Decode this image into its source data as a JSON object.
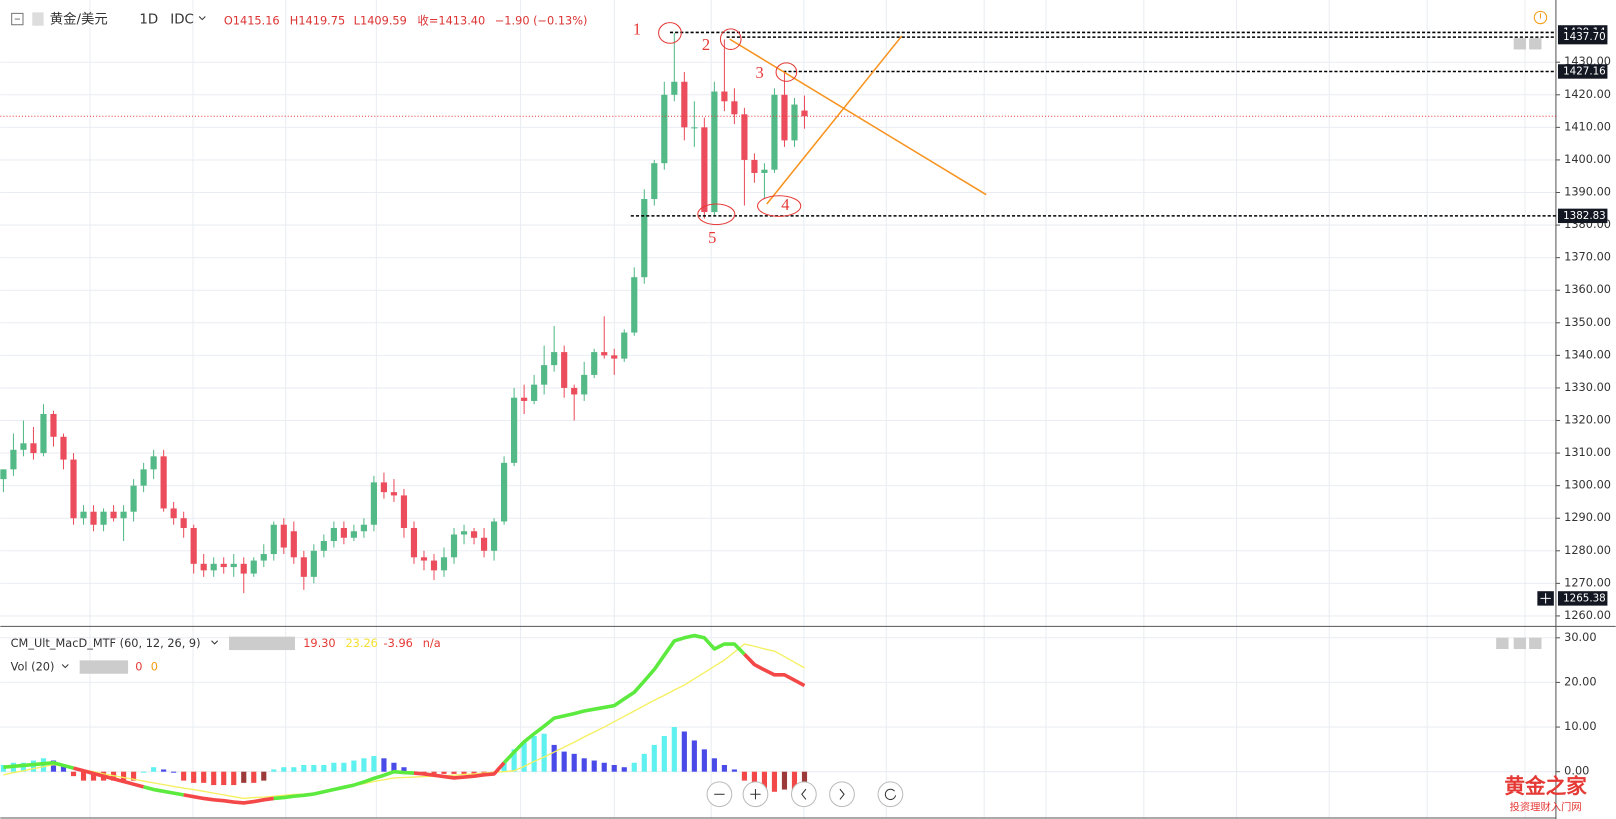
{
  "header": {
    "symbol": "黄金/美元",
    "interval": "1D",
    "source": "IDC",
    "open": "O1415.16",
    "high": "H1419.75",
    "low": "L1409.59",
    "close": "收=1413.40",
    "change": "−1.90 (−0.13%)"
  },
  "watermark": {
    "title": "黄金之家",
    "subtitle": "投资理财入门网"
  },
  "chart_data": [
    {
      "type": "candlestick",
      "up_color": "#53b987",
      "down_color": "#eb4d5c",
      "open": [
        1302,
        1305,
        1311,
        1313,
        1310,
        1322,
        1315,
        1308,
        1290,
        1292,
        1288,
        1292,
        1290,
        1292,
        1300,
        1305,
        1309,
        1293,
        1290,
        1287,
        1276,
        1274,
        1276,
        1275,
        1276,
        1273,
        1277,
        1279,
        1288,
        1286,
        1278,
        1272,
        1280,
        1283,
        1287,
        1284,
        1286,
        1288,
        1301,
        1298,
        1297,
        1287,
        1278,
        1277,
        1274,
        1278,
        1285,
        1286,
        1284,
        1280,
        1289,
        1307,
        1327,
        1326,
        1331,
        1337,
        1341,
        1330,
        1328,
        1334,
        1341,
        1340,
        1339,
        1347,
        1364,
        1388,
        1399,
        1420,
        1424,
        1410,
        1410,
        1384,
        1421,
        1418,
        1414,
        1400,
        1396,
        1397,
        1420,
        1406,
        1415.16
      ],
      "high": [
        1305,
        1316,
        1320,
        1318,
        1325,
        1323,
        1316,
        1310,
        1294,
        1294,
        1293,
        1294,
        1294,
        1302,
        1307,
        1311,
        1311,
        1295,
        1292,
        1288,
        1279,
        1278,
        1278,
        1279,
        1278,
        1278,
        1282,
        1289,
        1290,
        1289,
        1280,
        1282,
        1285,
        1289,
        1289,
        1288,
        1290,
        1303,
        1304,
        1302,
        1299,
        1289,
        1280,
        1279,
        1281,
        1287,
        1288,
        1287,
        1287,
        1290,
        1309,
        1330,
        1331,
        1334,
        1343,
        1349,
        1343,
        1331,
        1338,
        1342,
        1352,
        1342,
        1348,
        1367,
        1391,
        1400,
        1424,
        1439,
        1427,
        1418,
        1413,
        1424,
        1437,
        1422,
        1416,
        1402,
        1399,
        1422,
        1427,
        1419,
        1419.75
      ],
      "low": [
        1298,
        1303,
        1309,
        1308,
        1309,
        1312,
        1305,
        1288,
        1288,
        1286,
        1286,
        1289,
        1283,
        1289,
        1298,
        1302,
        1292,
        1288,
        1284,
        1273,
        1272,
        1272,
        1273,
        1272,
        1267,
        1272,
        1275,
        1277,
        1279,
        1276,
        1268,
        1270,
        1278,
        1281,
        1282,
        1283,
        1284,
        1286,
        1296,
        1295,
        1284,
        1276,
        1274,
        1271,
        1272,
        1276,
        1282,
        1282,
        1278,
        1277,
        1288,
        1306,
        1322,
        1325,
        1328,
        1335,
        1327,
        1320,
        1326,
        1333,
        1339,
        1334,
        1338,
        1346,
        1362,
        1386,
        1397,
        1418,
        1406,
        1404,
        1382,
        1383,
        1415,
        1411,
        1386,
        1393,
        1388,
        1396,
        1404,
        1404,
        1409.59
      ],
      "close": [
        1305,
        1311,
        1313,
        1310,
        1322,
        1315,
        1308,
        1290,
        1292,
        1288,
        1292,
        1290,
        1292,
        1300,
        1305,
        1309,
        1293,
        1290,
        1287,
        1276,
        1274,
        1276,
        1275,
        1276,
        1273,
        1277,
        1279,
        1288,
        1281,
        1278,
        1272,
        1280,
        1283,
        1287,
        1284,
        1286,
        1288,
        1301,
        1298,
        1297,
        1287,
        1278,
        1277,
        1274,
        1278,
        1285,
        1286,
        1284,
        1280,
        1289,
        1307,
        1327,
        1326,
        1331,
        1337,
        1341,
        1330,
        1328,
        1334,
        1341,
        1340,
        1339,
        1347,
        1364,
        1388,
        1399,
        1420,
        1424,
        1410,
        1410,
        1384,
        1421,
        1418,
        1414,
        1400,
        1396,
        1397,
        1420,
        1406,
        1417,
        1413.4
      ],
      "ylim": [
        1256.8,
        1449.1
      ],
      "yticks": [
        {
          "value": 1260,
          "label": "1260.00"
        },
        {
          "value": 1270,
          "label": "1270.00"
        },
        {
          "value": 1280,
          "label": "1280.00"
        },
        {
          "value": 1290,
          "label": "1290.00"
        },
        {
          "value": 1300,
          "label": "1300.00"
        },
        {
          "value": 1310,
          "label": "1310.00"
        },
        {
          "value": 1320,
          "label": "1320.00"
        },
        {
          "value": 1330,
          "label": "1330.00"
        },
        {
          "value": 1340,
          "label": "1340.00"
        },
        {
          "value": 1350,
          "label": "1350.00"
        },
        {
          "value": 1360,
          "label": "1360.00"
        },
        {
          "value": 1370,
          "label": "1370.00"
        },
        {
          "value": 1380,
          "label": "1380.00"
        },
        {
          "value": 1390,
          "label": "1390.00"
        },
        {
          "value": 1400,
          "label": "1400.00"
        },
        {
          "value": 1410,
          "label": "1410.00"
        },
        {
          "value": 1420,
          "label": "1420.00"
        },
        {
          "value": 1430,
          "label": "1430.00"
        }
      ],
      "grid": true,
      "levels": [
        1439.14,
        {
          "value": 1437.7,
          "label": "1437.70"
        },
        1427.16,
        1382.83
      ],
      "crosshair_price": 1265.38,
      "annotations": [
        "1",
        "2",
        "3",
        "4",
        "5"
      ]
    },
    {
      "type": "macd",
      "title": "CM_Ult_MacD_MTF (60, 12, 26, 9)",
      "legend_values": [
        "19.30",
        "23.26",
        "-3.96",
        "n/a"
      ],
      "volume_title": "Vol (20)",
      "volume_values": [
        "0",
        "0"
      ],
      "up_color": "#5dea3f",
      "down_color": "#f44747",
      "series": [
        {
          "values": [
            1,
            1.2,
            1.4,
            1.6,
            1.8,
            2,
            1.4,
            0.8,
            0.2,
            -0.4,
            -1,
            -1.6,
            -2.2,
            -2.8,
            -3.4,
            -4,
            -4.4,
            -4.8,
            -5.2,
            -5.6,
            -6,
            -6.3,
            -6.5,
            -6.8,
            -7,
            -6.7,
            -6.3,
            -6,
            -5.8,
            -5.5,
            -5.3,
            -5,
            -4.5,
            -4,
            -3.5,
            -3,
            -2.3,
            -1.5,
            -0.8,
            0,
            -0.2,
            -0.3,
            -0.5,
            -0.8,
            -1.1,
            -1.4,
            -1.2,
            -1,
            -0.7,
            -0.5,
            2,
            4.4,
            6.7,
            8.5,
            10.2,
            12,
            12.5,
            13,
            13.6,
            14,
            14.4,
            14.8,
            16.3,
            17.8,
            20.3,
            22.9,
            26.1,
            29.3,
            30,
            30.5,
            30,
            27.5,
            28.6,
            28.6,
            26.3,
            24,
            22.8,
            21.7,
            21.7,
            20.5,
            19.3
          ]
        },
        {
          "color": "#f5f060",
          "values": [
            -0.7,
            -0.2,
            0.2,
            0.7,
            1.1,
            1.6,
            1.2,
            0.8,
            0.4,
            0,
            -0.5,
            -0.9,
            -1.3,
            -1.7,
            -2.1,
            -2.5,
            -2.9,
            -3.3,
            -3.7,
            -4,
            -4.4,
            -4.8,
            -5.2,
            -5.6,
            -6,
            -5.8,
            -5.7,
            -5.5,
            -5.3,
            -5.1,
            -5,
            -4.8,
            -4.4,
            -4,
            -3.5,
            -3.1,
            -2.7,
            -2.2,
            -1.8,
            -1.4,
            -1.3,
            -1.2,
            -1.1,
            -1,
            -0.9,
            -0.8,
            -0.6,
            -0.5,
            -0.3,
            -0.1,
            0,
            0.2,
            1.2,
            2.3,
            3.3,
            4.4,
            5.5,
            6.6,
            7.8,
            8.9,
            10,
            11.2,
            12.4,
            13.6,
            14.8,
            16,
            17.1,
            18.3,
            19.4,
            20.8,
            22.2,
            23.6,
            25,
            26.8,
            28.6,
            28.1,
            27.5,
            27,
            25.8,
            24.5,
            23.26
          ]
        }
      ],
      "histogram": [
        1.5,
        2,
        2,
        2.5,
        3,
        2.5,
        1.5,
        -1,
        -2,
        -2,
        -2,
        -2,
        -2,
        -2,
        0,
        1,
        0.5,
        0,
        -2,
        -2.5,
        -2.5,
        -3,
        -3,
        -3,
        -2.5,
        -2.5,
        -2,
        0.5,
        1,
        1,
        1.5,
        1.5,
        1.5,
        2,
        2,
        2.5,
        3,
        3.5,
        3,
        2,
        1,
        -0.5,
        -0.5,
        -0.5,
        -0.5,
        -0.5,
        -0.5,
        -0.5,
        -0.5,
        -0.5,
        2,
        5,
        6.5,
        8,
        8.5,
        6,
        4.5,
        4,
        3,
        2.5,
        2,
        1.5,
        1,
        2,
        4,
        6,
        8,
        10,
        9,
        7,
        5,
        3,
        1.5,
        0.5,
        -2,
        -3.5,
        -4,
        -4.5,
        -4,
        -4.5,
        -3.96
      ],
      "histogram_colors": {
        "rising_positive": "#5ff0f0",
        "falling_positive": "#4a4ae8",
        "falling_negative": "#f24848",
        "rising_negative": "#9c3a3a"
      },
      "ylim": [
        -10.6,
        32.1
      ],
      "yticks": [
        {
          "value": 0,
          "label": "0.00"
        },
        {
          "value": 10,
          "label": "10.00"
        },
        {
          "value": 20,
          "label": "20.00"
        },
        {
          "value": 30,
          "label": "30.00"
        }
      ]
    }
  ]
}
